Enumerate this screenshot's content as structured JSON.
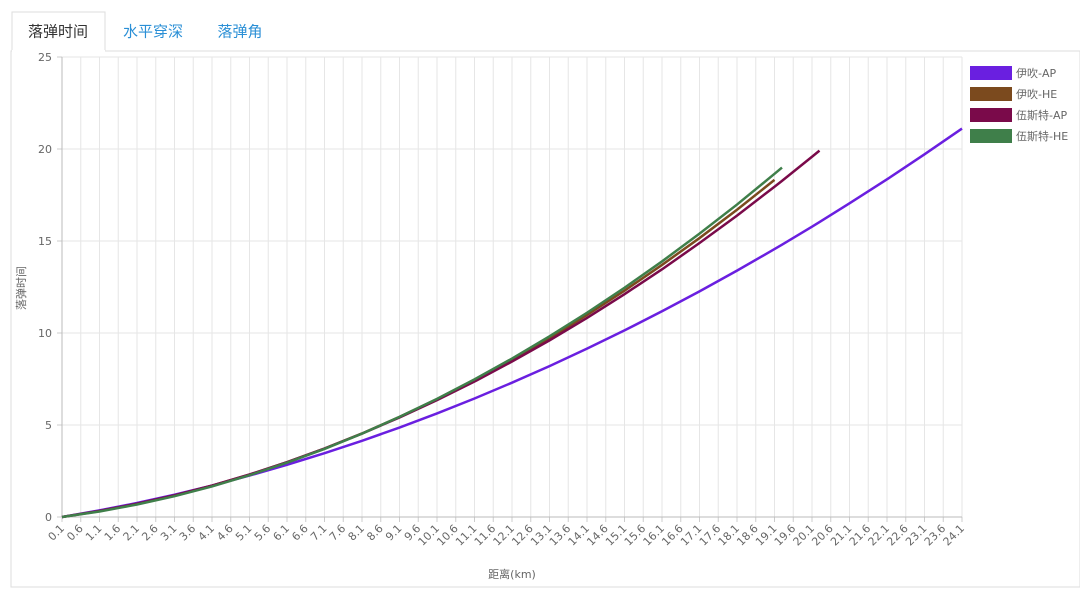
{
  "tabs": [
    "落弹时间",
    "水平穿深",
    "落弹角"
  ],
  "chart_data": {
    "type": "line",
    "xlabel": "距离(km)",
    "ylabel": "落弹时间",
    "x": [
      0.1,
      1.1,
      2.1,
      3.1,
      4.1,
      5.1,
      6.1,
      7.1,
      8.1,
      9.1,
      10.1,
      11.1,
      12.1,
      13.1,
      14.1,
      15.1,
      16.1,
      17.1,
      18.1,
      19.1,
      19.3,
      20.1,
      20.3,
      21.1,
      22.1,
      23.1,
      24.1
    ],
    "xlim": [
      0.1,
      24.1
    ],
    "xticks": [
      0.1,
      0.6,
      1.1,
      1.6,
      2.1,
      2.6,
      3.1,
      3.6,
      4.1,
      4.6,
      5.1,
      5.6,
      6.1,
      6.6,
      7.1,
      7.6,
      8.1,
      8.6,
      9.1,
      9.6,
      10.1,
      10.6,
      11.1,
      11.6,
      12.1,
      12.6,
      13.1,
      13.6,
      14.1,
      14.6,
      15.1,
      15.6,
      16.1,
      16.6,
      17.1,
      17.6,
      18.1,
      18.6,
      19.1,
      19.6,
      20.1,
      20.6,
      21.1,
      21.6,
      22.1,
      22.6,
      23.1,
      23.6,
      24.1
    ],
    "ylim": [
      0,
      25
    ],
    "yticks": [
      0,
      5,
      10,
      15,
      20,
      25
    ],
    "grid": true,
    "legend": "right",
    "series": [
      {
        "name": "伊吹-AP",
        "color": "#6a1fe0",
        "values": [
          0,
          0.36,
          0.76,
          1.21,
          1.71,
          2.25,
          2.84,
          3.47,
          4.14,
          4.86,
          5.63,
          6.44,
          7.3,
          8.2,
          9.15,
          10.14,
          11.18,
          12.26,
          13.39,
          14.56,
          14.8,
          15.78,
          16.03,
          17.05,
          18.35,
          19.71,
          21.11
        ]
      },
      {
        "name": "伊吹-HE",
        "color": "#7b4a1e",
        "values": [
          0,
          0.32,
          0.7,
          1.16,
          1.7,
          2.3,
          2.98,
          3.72,
          4.54,
          5.44,
          6.4,
          7.44,
          8.54,
          9.72,
          10.98,
          12.3,
          13.7,
          15.16,
          16.7,
          18.32,
          null,
          null,
          null,
          null,
          null,
          null,
          null
        ]
      },
      {
        "name": "伍斯特-AP",
        "color": "#7a0a4a",
        "values": [
          0,
          0.33,
          0.72,
          1.18,
          1.71,
          2.31,
          2.98,
          3.72,
          4.53,
          5.41,
          6.35,
          7.36,
          8.45,
          9.6,
          10.82,
          12.11,
          13.46,
          14.89,
          16.38,
          17.95,
          18.27,
          19.58,
          19.91,
          null,
          null,
          null,
          null
        ]
      },
      {
        "name": "伍斯特-HE",
        "color": "#3f7f4a",
        "values": [
          0,
          0.3,
          0.68,
          1.13,
          1.66,
          2.27,
          2.95,
          3.7,
          4.53,
          5.44,
          6.42,
          7.48,
          8.61,
          9.82,
          11.1,
          12.46,
          13.89,
          15.4,
          16.98,
          18.65,
          18.99,
          null,
          null,
          null,
          null,
          null,
          null
        ]
      }
    ]
  }
}
